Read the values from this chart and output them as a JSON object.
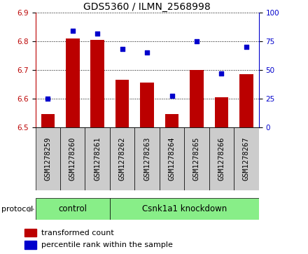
{
  "title": "GDS5360 / ILMN_2568998",
  "samples": [
    "GSM1278259",
    "GSM1278260",
    "GSM1278261",
    "GSM1278262",
    "GSM1278263",
    "GSM1278264",
    "GSM1278265",
    "GSM1278266",
    "GSM1278267"
  ],
  "transformed_count": [
    6.545,
    6.81,
    6.805,
    6.665,
    6.655,
    6.545,
    6.7,
    6.605,
    6.685
  ],
  "percentile_rank": [
    25,
    84,
    82,
    68,
    65,
    27,
    75,
    47,
    70
  ],
  "ylim_left": [
    6.5,
    6.9
  ],
  "ylim_right": [
    0,
    100
  ],
  "yticks_left": [
    6.5,
    6.6,
    6.7,
    6.8,
    6.9
  ],
  "yticks_right": [
    0,
    25,
    50,
    75,
    100
  ],
  "bar_color": "#bb0000",
  "dot_color": "#0000cc",
  "control_samples": 3,
  "protocol_labels": [
    "control",
    "Csnk1a1 knockdown"
  ],
  "protocol_bg": "#88ee88",
  "sample_bg": "#cccccc",
  "legend_bar_label": "transformed count",
  "legend_dot_label": "percentile rank within the sample",
  "title_fontsize": 10,
  "tick_fontsize": 7.5,
  "label_fontsize": 8,
  "protocol_fontsize": 8.5
}
